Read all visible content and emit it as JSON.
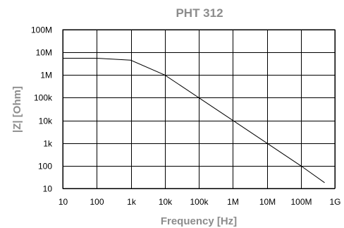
{
  "chart_data": {
    "type": "line",
    "title": "PHT 312",
    "xlabel": "Frequency [Hz]",
    "ylabel": "|Z| [Ohm]",
    "x_scale": "log",
    "y_scale": "log",
    "xlim": [
      10,
      1000000000
    ],
    "ylim": [
      10,
      100000000
    ],
    "grid": true,
    "x_ticks": [
      {
        "value": 10,
        "label": "10"
      },
      {
        "value": 100,
        "label": "100"
      },
      {
        "value": 1000,
        "label": "1k"
      },
      {
        "value": 10000,
        "label": "10k"
      },
      {
        "value": 100000,
        "label": "100k"
      },
      {
        "value": 1000000,
        "label": "1M"
      },
      {
        "value": 10000000,
        "label": "10M"
      },
      {
        "value": 100000000,
        "label": "100M"
      },
      {
        "value": 1000000000,
        "label": "1G"
      }
    ],
    "y_ticks": [
      {
        "value": 10,
        "label": "10"
      },
      {
        "value": 100,
        "label": "100"
      },
      {
        "value": 1000,
        "label": "1k"
      },
      {
        "value": 10000,
        "label": "10k"
      },
      {
        "value": 100000,
        "label": "100k"
      },
      {
        "value": 1000000,
        "label": "1M"
      },
      {
        "value": 10000000,
        "label": "10M"
      },
      {
        "value": 100000000,
        "label": "100M"
      }
    ],
    "series": [
      {
        "color": "#000000",
        "points": [
          {
            "x": 10,
            "y": 5500000
          },
          {
            "x": 100,
            "y": 5500000
          },
          {
            "x": 1000,
            "y": 4500000
          },
          {
            "x": 10000,
            "y": 1000000
          },
          {
            "x": 100000,
            "y": 100000
          },
          {
            "x": 1000000,
            "y": 10000
          },
          {
            "x": 10000000,
            "y": 1000
          },
          {
            "x": 100000000,
            "y": 100
          },
          {
            "x": 500000000,
            "y": 18
          }
        ]
      }
    ]
  }
}
